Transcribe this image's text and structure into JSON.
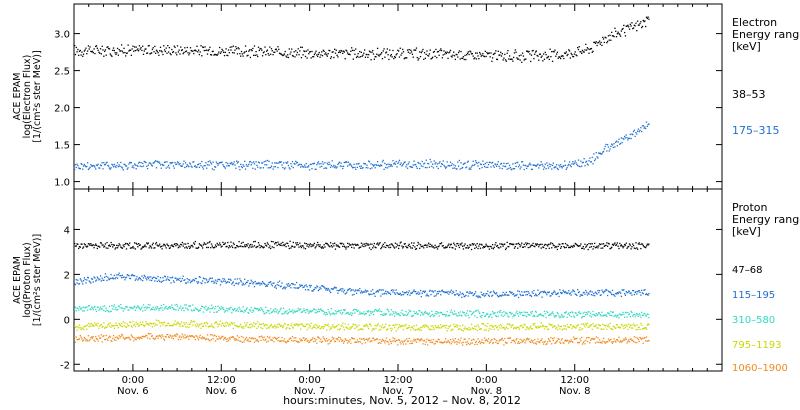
{
  "chart_data": [
    {
      "type": "scatter",
      "panel": "electron",
      "ylabel": [
        "ACE EPAM",
        "log(Electron Flux)",
        "[1/(cm²s ster MeV)]"
      ],
      "ylim": [
        0.9,
        3.4
      ],
      "yticks": [
        "1.0",
        "1.5",
        "2.0",
        "2.5",
        "3.0"
      ],
      "legend_title": [
        "Electron",
        "Energy range",
        "[keV]"
      ],
      "series": [
        {
          "name": "38–53",
          "color": "#000000",
          "x": [
            0,
            12,
            24,
            36,
            48,
            60,
            66,
            70,
            72,
            76,
            78
          ],
          "y": [
            2.78,
            2.79,
            2.76,
            2.74,
            2.73,
            2.7,
            2.72,
            2.8,
            2.95,
            3.1,
            3.18
          ]
        },
        {
          "name": "175–315",
          "color": "#1f6fd0",
          "x": [
            0,
            12,
            24,
            36,
            48,
            60,
            66,
            70,
            72,
            76,
            78
          ],
          "y": [
            1.22,
            1.24,
            1.23,
            1.23,
            1.24,
            1.22,
            1.22,
            1.28,
            1.45,
            1.65,
            1.8
          ]
        }
      ]
    },
    {
      "type": "scatter",
      "panel": "proton",
      "ylabel": [
        "ACE EPAM",
        "log(Proton Flux)",
        "[1/(cm²s ster MeV)]"
      ],
      "ylim": [
        -2.3,
        5.8
      ],
      "yticks": [
        "-2",
        "0",
        "2",
        "4"
      ],
      "legend_title": [
        "Proton",
        "Energy range",
        "[keV]"
      ],
      "series": [
        {
          "name": "47–68",
          "color": "#000000",
          "x": [
            0,
            12,
            24,
            36,
            48,
            60,
            72,
            78
          ],
          "y": [
            3.3,
            3.3,
            3.35,
            3.3,
            3.3,
            3.3,
            3.3,
            3.3
          ]
        },
        {
          "name": "115–195",
          "color": "#1f6fd0",
          "x": [
            0,
            6,
            12,
            18,
            24,
            30,
            36,
            42,
            48,
            54,
            60,
            66,
            72,
            78
          ],
          "y": [
            1.7,
            1.95,
            1.8,
            1.75,
            1.65,
            1.5,
            1.3,
            1.2,
            1.2,
            1.15,
            1.15,
            1.2,
            1.2,
            1.2
          ]
        },
        {
          "name": "310–580",
          "color": "#30d8c0",
          "x": [
            0,
            12,
            24,
            36,
            48,
            60,
            72,
            78
          ],
          "y": [
            0.5,
            0.55,
            0.45,
            0.35,
            0.3,
            0.25,
            0.25,
            0.25
          ]
        },
        {
          "name": "795–1193",
          "color": "#c8d800",
          "x": [
            0,
            12,
            24,
            36,
            48,
            60,
            72,
            78
          ],
          "y": [
            -0.3,
            -0.15,
            -0.25,
            -0.3,
            -0.35,
            -0.3,
            -0.3,
            -0.3
          ]
        },
        {
          "name": "1060–1900",
          "color": "#f08a20",
          "x": [
            0,
            12,
            24,
            36,
            48,
            60,
            72,
            78
          ],
          "y": [
            -0.85,
            -0.75,
            -0.85,
            -0.9,
            -0.95,
            -0.95,
            -0.9,
            -0.9
          ]
        }
      ]
    }
  ],
  "x_axis": {
    "xlim": [
      0,
      88
    ],
    "major_ticks": [
      {
        "x": 8,
        "time": "0:00",
        "date": "Nov. 6"
      },
      {
        "x": 20,
        "time": "12:00",
        "date": "Nov. 6"
      },
      {
        "x": 32,
        "time": "0:00",
        "date": "Nov. 7"
      },
      {
        "x": 44,
        "time": "12:00",
        "date": "Nov. 7"
      },
      {
        "x": 56,
        "time": "0:00",
        "date": "Nov. 8"
      },
      {
        "x": 68,
        "time": "12:00",
        "date": "Nov. 8"
      }
    ],
    "xlabel": "hours:minutes, Nov. 5, 2012 – Nov. 8, 2012"
  }
}
